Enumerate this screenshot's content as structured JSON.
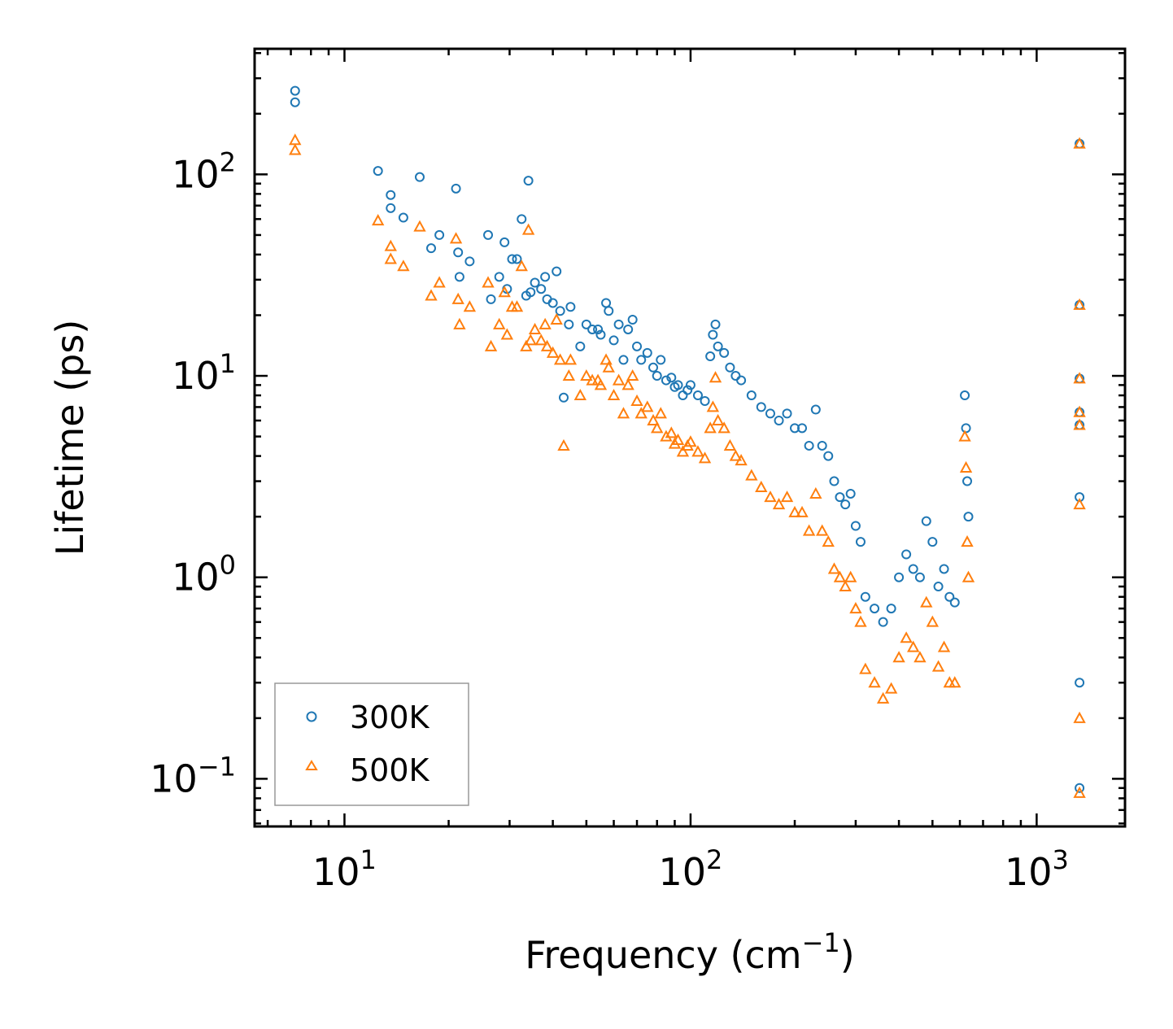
{
  "chart_data": {
    "type": "scatter",
    "xscale": "log",
    "yscale": "log",
    "xlim": [
      5.5,
      1800
    ],
    "ylim": [
      0.058,
      420
    ],
    "xlabel": "Frequency (cm",
    "xlabel_sup": "−1",
    "xlabel_end": ")",
    "ylabel": "Lifetime (ps)",
    "x_ticks": [
      {
        "value": 10,
        "base": "10",
        "exp": "1"
      },
      {
        "value": 100,
        "base": "10",
        "exp": "2"
      },
      {
        "value": 1000,
        "base": "10",
        "exp": "3"
      }
    ],
    "y_ticks": [
      {
        "value": 0.1,
        "base": "10",
        "exp": "−1"
      },
      {
        "value": 1,
        "base": "10",
        "exp": "0"
      },
      {
        "value": 10,
        "base": "10",
        "exp": "1"
      },
      {
        "value": 100,
        "base": "10",
        "exp": "2"
      }
    ],
    "legend_position": "lower-left",
    "series": [
      {
        "name": "300K",
        "marker": "circle",
        "color": "#1f77b4",
        "points": [
          [
            7.2,
            260
          ],
          [
            7.2,
            228
          ],
          [
            12.5,
            104
          ],
          [
            13.6,
            79
          ],
          [
            13.6,
            68
          ],
          [
            14.8,
            61
          ],
          [
            16.5,
            97
          ],
          [
            17.8,
            43
          ],
          [
            18.8,
            50
          ],
          [
            21,
            85
          ],
          [
            21.3,
            41
          ],
          [
            21.5,
            31
          ],
          [
            23,
            37
          ],
          [
            26,
            50
          ],
          [
            26.5,
            24
          ],
          [
            28,
            31
          ],
          [
            29,
            46
          ],
          [
            29.5,
            27
          ],
          [
            30.5,
            38
          ],
          [
            31.5,
            38
          ],
          [
            32.5,
            60
          ],
          [
            33.5,
            25
          ],
          [
            34,
            93
          ],
          [
            34.5,
            26
          ],
          [
            35.5,
            29
          ],
          [
            37,
            27
          ],
          [
            38,
            31
          ],
          [
            38.5,
            24
          ],
          [
            40,
            23
          ],
          [
            41,
            33
          ],
          [
            42,
            21
          ],
          [
            43,
            7.8
          ],
          [
            44.5,
            18
          ],
          [
            45,
            22
          ],
          [
            48,
            14
          ],
          [
            50,
            18
          ],
          [
            52,
            17
          ],
          [
            54,
            17
          ],
          [
            55,
            16
          ],
          [
            57,
            23
          ],
          [
            58,
            21
          ],
          [
            60,
            15
          ],
          [
            62,
            18
          ],
          [
            64,
            12
          ],
          [
            66,
            17
          ],
          [
            68,
            19
          ],
          [
            70,
            14
          ],
          [
            72,
            12
          ],
          [
            75,
            13
          ],
          [
            78,
            11
          ],
          [
            80,
            10
          ],
          [
            82,
            12
          ],
          [
            85,
            9.5
          ],
          [
            88,
            9.8
          ],
          [
            90,
            8.8
          ],
          [
            92,
            9
          ],
          [
            95,
            8
          ],
          [
            98,
            8.5
          ],
          [
            100,
            9
          ],
          [
            105,
            8
          ],
          [
            110,
            7.5
          ],
          [
            114,
            12.5
          ],
          [
            116,
            16
          ],
          [
            118,
            18
          ],
          [
            120,
            14
          ],
          [
            125,
            13
          ],
          [
            130,
            11
          ],
          [
            135,
            10
          ],
          [
            140,
            9.5
          ],
          [
            150,
            8
          ],
          [
            160,
            7
          ],
          [
            170,
            6.5
          ],
          [
            180,
            6
          ],
          [
            190,
            6.5
          ],
          [
            200,
            5.5
          ],
          [
            210,
            5.5
          ],
          [
            220,
            4.5
          ],
          [
            230,
            6.8
          ],
          [
            240,
            4.5
          ],
          [
            250,
            4
          ],
          [
            260,
            3
          ],
          [
            270,
            2.5
          ],
          [
            280,
            2.3
          ],
          [
            290,
            2.6
          ],
          [
            300,
            1.8
          ],
          [
            310,
            1.5
          ],
          [
            320,
            0.8
          ],
          [
            340,
            0.7
          ],
          [
            360,
            0.6
          ],
          [
            380,
            0.7
          ],
          [
            400,
            1.0
          ],
          [
            420,
            1.3
          ],
          [
            440,
            1.1
          ],
          [
            460,
            1.0
          ],
          [
            480,
            1.9
          ],
          [
            500,
            1.5
          ],
          [
            520,
            0.9
          ],
          [
            540,
            1.1
          ],
          [
            560,
            0.8
          ],
          [
            580,
            0.75
          ],
          [
            620,
            8
          ],
          [
            625,
            5.5
          ],
          [
            630,
            3
          ],
          [
            635,
            2
          ],
          [
            1330,
            142
          ],
          [
            1330,
            22.5
          ],
          [
            1330,
            9.7
          ],
          [
            1330,
            6.6
          ],
          [
            1330,
            5.7
          ],
          [
            1330,
            2.5
          ],
          [
            1330,
            0.3
          ],
          [
            1330,
            0.09
          ]
        ]
      },
      {
        "name": "500K",
        "marker": "triangle",
        "color": "#ff7f0e",
        "points": [
          [
            7.2,
            148
          ],
          [
            7.2,
            132
          ],
          [
            12.5,
            59
          ],
          [
            13.6,
            44
          ],
          [
            13.6,
            38
          ],
          [
            14.8,
            35
          ],
          [
            16.5,
            55
          ],
          [
            17.8,
            25
          ],
          [
            18.8,
            29
          ],
          [
            21,
            48
          ],
          [
            21.3,
            24
          ],
          [
            21.5,
            18
          ],
          [
            23,
            22
          ],
          [
            26,
            29
          ],
          [
            26.5,
            14
          ],
          [
            28,
            18
          ],
          [
            29,
            26
          ],
          [
            29.5,
            16
          ],
          [
            30.5,
            22
          ],
          [
            31.5,
            22
          ],
          [
            32.5,
            35
          ],
          [
            33.5,
            14
          ],
          [
            34,
            53
          ],
          [
            34.5,
            15
          ],
          [
            35.5,
            17
          ],
          [
            37,
            15
          ],
          [
            38,
            18
          ],
          [
            38.5,
            14
          ],
          [
            40,
            13
          ],
          [
            41,
            19
          ],
          [
            42,
            12
          ],
          [
            43,
            4.5
          ],
          [
            44.5,
            10
          ],
          [
            45,
            12
          ],
          [
            48,
            8
          ],
          [
            50,
            10
          ],
          [
            52,
            9.5
          ],
          [
            54,
            9.5
          ],
          [
            55,
            9
          ],
          [
            57,
            12
          ],
          [
            58,
            11
          ],
          [
            60,
            8
          ],
          [
            62,
            9.5
          ],
          [
            64,
            6.5
          ],
          [
            66,
            9
          ],
          [
            68,
            10
          ],
          [
            70,
            7.5
          ],
          [
            72,
            6.5
          ],
          [
            75,
            7
          ],
          [
            78,
            6
          ],
          [
            80,
            5.5
          ],
          [
            82,
            6.5
          ],
          [
            85,
            5
          ],
          [
            88,
            5.2
          ],
          [
            90,
            4.6
          ],
          [
            92,
            4.8
          ],
          [
            95,
            4.2
          ],
          [
            98,
            4.5
          ],
          [
            100,
            4.7
          ],
          [
            105,
            4.2
          ],
          [
            110,
            3.9
          ],
          [
            114,
            5.5
          ],
          [
            116,
            7
          ],
          [
            118,
            9.8
          ],
          [
            120,
            6
          ],
          [
            125,
            5.5
          ],
          [
            130,
            4.5
          ],
          [
            135,
            4
          ],
          [
            140,
            3.8
          ],
          [
            150,
            3.2
          ],
          [
            160,
            2.8
          ],
          [
            170,
            2.5
          ],
          [
            180,
            2.3
          ],
          [
            190,
            2.5
          ],
          [
            200,
            2.1
          ],
          [
            210,
            2.1
          ],
          [
            220,
            1.7
          ],
          [
            230,
            2.6
          ],
          [
            240,
            1.7
          ],
          [
            250,
            1.5
          ],
          [
            260,
            1.1
          ],
          [
            270,
            1.0
          ],
          [
            280,
            0.9
          ],
          [
            290,
            1.0
          ],
          [
            300,
            0.7
          ],
          [
            310,
            0.6
          ],
          [
            320,
            0.35
          ],
          [
            340,
            0.3
          ],
          [
            360,
            0.25
          ],
          [
            380,
            0.28
          ],
          [
            400,
            0.4
          ],
          [
            420,
            0.5
          ],
          [
            440,
            0.45
          ],
          [
            460,
            0.4
          ],
          [
            480,
            0.75
          ],
          [
            500,
            0.6
          ],
          [
            520,
            0.36
          ],
          [
            540,
            0.45
          ],
          [
            560,
            0.3
          ],
          [
            580,
            0.3
          ],
          [
            620,
            5
          ],
          [
            625,
            3.5
          ],
          [
            630,
            1.5
          ],
          [
            635,
            1.0
          ],
          [
            1330,
            142
          ],
          [
            1330,
            22.5
          ],
          [
            1330,
            9.7
          ],
          [
            1330,
            6.6
          ],
          [
            1330,
            5.7
          ],
          [
            1330,
            2.3
          ],
          [
            1330,
            0.2
          ],
          [
            1330,
            0.085
          ]
        ]
      }
    ]
  }
}
